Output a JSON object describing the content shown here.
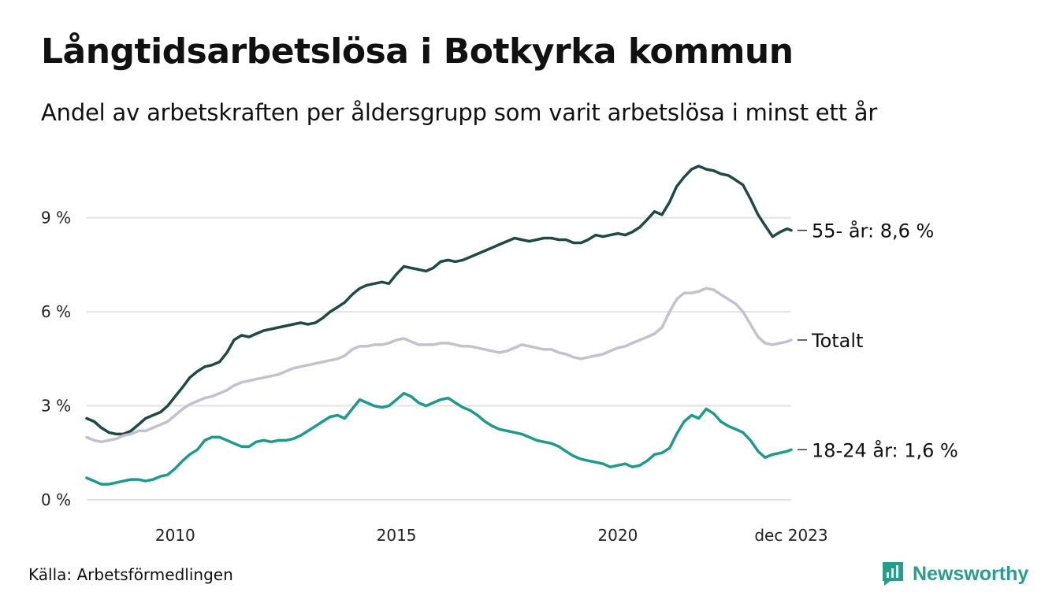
{
  "title": "Långtidsarbetslösa i Botkyrka kommun",
  "subtitle": "Andel av arbetskraften per åldersgrupp som varit arbetslösa i minst ett år",
  "source": "Källa: Arbetsförmedlingen",
  "brand": "Newsworthy",
  "colors": {
    "older": "#1f4a42",
    "total": "#c3c0cf",
    "young": "#1e9a88",
    "grid": "#e2e2e2",
    "brand": "#2a9d8a"
  },
  "chart_data": {
    "type": "line",
    "ylim": [
      0,
      10.8
    ],
    "xlim": [
      2008.0,
      2023.92
    ],
    "yticks": [
      {
        "value": 0,
        "label": "0 %"
      },
      {
        "value": 3,
        "label": "3 %"
      },
      {
        "value": 6,
        "label": "6 %"
      },
      {
        "value": 9,
        "label": "9 %"
      }
    ],
    "xticks": [
      {
        "value": 2010,
        "label": "2010"
      },
      {
        "value": 2015,
        "label": "2015"
      },
      {
        "value": 2020,
        "label": "2020"
      },
      {
        "value": 2023.92,
        "label": "dec 2023"
      }
    ],
    "grid": true,
    "series": [
      {
        "name": "55- år",
        "label": "55- år: 8,6 %",
        "colorKey": "older",
        "points": [
          [
            2008.0,
            2.6
          ],
          [
            2008.17,
            2.5
          ],
          [
            2008.33,
            2.3
          ],
          [
            2008.5,
            2.15
          ],
          [
            2008.67,
            2.1
          ],
          [
            2008.83,
            2.1
          ],
          [
            2009.0,
            2.2
          ],
          [
            2009.17,
            2.4
          ],
          [
            2009.33,
            2.6
          ],
          [
            2009.5,
            2.7
          ],
          [
            2009.67,
            2.8
          ],
          [
            2009.83,
            3.0
          ],
          [
            2010.0,
            3.3
          ],
          [
            2010.17,
            3.6
          ],
          [
            2010.33,
            3.9
          ],
          [
            2010.5,
            4.1
          ],
          [
            2010.67,
            4.25
          ],
          [
            2010.83,
            4.3
          ],
          [
            2011.0,
            4.4
          ],
          [
            2011.17,
            4.7
          ],
          [
            2011.33,
            5.1
          ],
          [
            2011.5,
            5.25
          ],
          [
            2011.67,
            5.2
          ],
          [
            2011.83,
            5.3
          ],
          [
            2012.0,
            5.4
          ],
          [
            2012.17,
            5.45
          ],
          [
            2012.33,
            5.5
          ],
          [
            2012.5,
            5.55
          ],
          [
            2012.67,
            5.6
          ],
          [
            2012.83,
            5.65
          ],
          [
            2013.0,
            5.6
          ],
          [
            2013.17,
            5.65
          ],
          [
            2013.33,
            5.8
          ],
          [
            2013.5,
            6.0
          ],
          [
            2013.67,
            6.15
          ],
          [
            2013.83,
            6.3
          ],
          [
            2014.0,
            6.55
          ],
          [
            2014.17,
            6.75
          ],
          [
            2014.33,
            6.85
          ],
          [
            2014.5,
            6.9
          ],
          [
            2014.67,
            6.95
          ],
          [
            2014.83,
            6.9
          ],
          [
            2015.0,
            7.2
          ],
          [
            2015.17,
            7.45
          ],
          [
            2015.33,
            7.4
          ],
          [
            2015.5,
            7.35
          ],
          [
            2015.67,
            7.3
          ],
          [
            2015.83,
            7.4
          ],
          [
            2016.0,
            7.6
          ],
          [
            2016.17,
            7.65
          ],
          [
            2016.33,
            7.6
          ],
          [
            2016.5,
            7.65
          ],
          [
            2016.67,
            7.75
          ],
          [
            2016.83,
            7.85
          ],
          [
            2017.0,
            7.95
          ],
          [
            2017.17,
            8.05
          ],
          [
            2017.33,
            8.15
          ],
          [
            2017.5,
            8.25
          ],
          [
            2017.67,
            8.35
          ],
          [
            2017.83,
            8.3
          ],
          [
            2018.0,
            8.25
          ],
          [
            2018.17,
            8.3
          ],
          [
            2018.33,
            8.35
          ],
          [
            2018.5,
            8.35
          ],
          [
            2018.67,
            8.3
          ],
          [
            2018.83,
            8.3
          ],
          [
            2019.0,
            8.2
          ],
          [
            2019.17,
            8.2
          ],
          [
            2019.33,
            8.3
          ],
          [
            2019.5,
            8.45
          ],
          [
            2019.67,
            8.4
          ],
          [
            2019.83,
            8.45
          ],
          [
            2020.0,
            8.5
          ],
          [
            2020.17,
            8.45
          ],
          [
            2020.33,
            8.55
          ],
          [
            2020.5,
            8.7
          ],
          [
            2020.67,
            8.95
          ],
          [
            2020.83,
            9.2
          ],
          [
            2021.0,
            9.1
          ],
          [
            2021.17,
            9.5
          ],
          [
            2021.33,
            10.0
          ],
          [
            2021.5,
            10.3
          ],
          [
            2021.67,
            10.55
          ],
          [
            2021.83,
            10.65
          ],
          [
            2022.0,
            10.55
          ],
          [
            2022.17,
            10.5
          ],
          [
            2022.33,
            10.4
          ],
          [
            2022.5,
            10.35
          ],
          [
            2022.67,
            10.2
          ],
          [
            2022.83,
            10.05
          ],
          [
            2023.0,
            9.6
          ],
          [
            2023.17,
            9.1
          ],
          [
            2023.33,
            8.75
          ],
          [
            2023.5,
            8.4
          ],
          [
            2023.67,
            8.55
          ],
          [
            2023.83,
            8.65
          ],
          [
            2023.92,
            8.6
          ]
        ]
      },
      {
        "name": "Totalt",
        "label": "Totalt",
        "colorKey": "total",
        "points": [
          [
            2008.0,
            2.0
          ],
          [
            2008.17,
            1.9
          ],
          [
            2008.33,
            1.85
          ],
          [
            2008.5,
            1.9
          ],
          [
            2008.67,
            1.95
          ],
          [
            2008.83,
            2.05
          ],
          [
            2009.0,
            2.1
          ],
          [
            2009.17,
            2.2
          ],
          [
            2009.33,
            2.2
          ],
          [
            2009.5,
            2.3
          ],
          [
            2009.67,
            2.4
          ],
          [
            2009.83,
            2.5
          ],
          [
            2010.0,
            2.7
          ],
          [
            2010.17,
            2.9
          ],
          [
            2010.33,
            3.05
          ],
          [
            2010.5,
            3.15
          ],
          [
            2010.67,
            3.25
          ],
          [
            2010.83,
            3.3
          ],
          [
            2011.0,
            3.4
          ],
          [
            2011.17,
            3.5
          ],
          [
            2011.33,
            3.65
          ],
          [
            2011.5,
            3.75
          ],
          [
            2011.67,
            3.8
          ],
          [
            2011.83,
            3.85
          ],
          [
            2012.0,
            3.9
          ],
          [
            2012.17,
            3.95
          ],
          [
            2012.33,
            4.0
          ],
          [
            2012.5,
            4.1
          ],
          [
            2012.67,
            4.2
          ],
          [
            2012.83,
            4.25
          ],
          [
            2013.0,
            4.3
          ],
          [
            2013.17,
            4.35
          ],
          [
            2013.33,
            4.4
          ],
          [
            2013.5,
            4.45
          ],
          [
            2013.67,
            4.5
          ],
          [
            2013.83,
            4.6
          ],
          [
            2014.0,
            4.8
          ],
          [
            2014.17,
            4.9
          ],
          [
            2014.33,
            4.9
          ],
          [
            2014.5,
            4.95
          ],
          [
            2014.67,
            4.95
          ],
          [
            2014.83,
            5.0
          ],
          [
            2015.0,
            5.1
          ],
          [
            2015.17,
            5.15
          ],
          [
            2015.33,
            5.05
          ],
          [
            2015.5,
            4.95
          ],
          [
            2015.67,
            4.95
          ],
          [
            2015.83,
            4.95
          ],
          [
            2016.0,
            5.0
          ],
          [
            2016.17,
            5.0
          ],
          [
            2016.33,
            4.95
          ],
          [
            2016.5,
            4.9
          ],
          [
            2016.67,
            4.9
          ],
          [
            2016.83,
            4.85
          ],
          [
            2017.0,
            4.8
          ],
          [
            2017.17,
            4.75
          ],
          [
            2017.33,
            4.7
          ],
          [
            2017.5,
            4.75
          ],
          [
            2017.67,
            4.85
          ],
          [
            2017.83,
            4.95
          ],
          [
            2018.0,
            4.9
          ],
          [
            2018.17,
            4.85
          ],
          [
            2018.33,
            4.8
          ],
          [
            2018.5,
            4.8
          ],
          [
            2018.67,
            4.7
          ],
          [
            2018.83,
            4.65
          ],
          [
            2019.0,
            4.55
          ],
          [
            2019.17,
            4.5
          ],
          [
            2019.33,
            4.55
          ],
          [
            2019.5,
            4.6
          ],
          [
            2019.67,
            4.65
          ],
          [
            2019.83,
            4.75
          ],
          [
            2020.0,
            4.85
          ],
          [
            2020.17,
            4.9
          ],
          [
            2020.33,
            5.0
          ],
          [
            2020.5,
            5.1
          ],
          [
            2020.67,
            5.2
          ],
          [
            2020.83,
            5.3
          ],
          [
            2021.0,
            5.5
          ],
          [
            2021.17,
            6.0
          ],
          [
            2021.33,
            6.4
          ],
          [
            2021.5,
            6.6
          ],
          [
            2021.67,
            6.6
          ],
          [
            2021.83,
            6.65
          ],
          [
            2022.0,
            6.75
          ],
          [
            2022.17,
            6.7
          ],
          [
            2022.33,
            6.55
          ],
          [
            2022.5,
            6.4
          ],
          [
            2022.67,
            6.25
          ],
          [
            2022.83,
            6.0
          ],
          [
            2023.0,
            5.6
          ],
          [
            2023.17,
            5.2
          ],
          [
            2023.33,
            5.0
          ],
          [
            2023.5,
            4.95
          ],
          [
            2023.67,
            5.0
          ],
          [
            2023.83,
            5.05
          ],
          [
            2023.92,
            5.1
          ]
        ]
      },
      {
        "name": "18-24 år",
        "label": "18-24 år: 1,6 %",
        "colorKey": "young",
        "points": [
          [
            2008.0,
            0.7
          ],
          [
            2008.17,
            0.6
          ],
          [
            2008.33,
            0.5
          ],
          [
            2008.5,
            0.5
          ],
          [
            2008.67,
            0.55
          ],
          [
            2008.83,
            0.6
          ],
          [
            2009.0,
            0.65
          ],
          [
            2009.17,
            0.65
          ],
          [
            2009.33,
            0.6
          ],
          [
            2009.5,
            0.65
          ],
          [
            2009.67,
            0.75
          ],
          [
            2009.83,
            0.8
          ],
          [
            2010.0,
            1.0
          ],
          [
            2010.17,
            1.25
          ],
          [
            2010.33,
            1.45
          ],
          [
            2010.5,
            1.6
          ],
          [
            2010.67,
            1.9
          ],
          [
            2010.83,
            2.0
          ],
          [
            2011.0,
            2.0
          ],
          [
            2011.17,
            1.9
          ],
          [
            2011.33,
            1.8
          ],
          [
            2011.5,
            1.7
          ],
          [
            2011.67,
            1.7
          ],
          [
            2011.83,
            1.85
          ],
          [
            2012.0,
            1.9
          ],
          [
            2012.17,
            1.85
          ],
          [
            2012.33,
            1.9
          ],
          [
            2012.5,
            1.9
          ],
          [
            2012.67,
            1.95
          ],
          [
            2012.83,
            2.05
          ],
          [
            2013.0,
            2.2
          ],
          [
            2013.17,
            2.35
          ],
          [
            2013.33,
            2.5
          ],
          [
            2013.5,
            2.65
          ],
          [
            2013.67,
            2.7
          ],
          [
            2013.83,
            2.6
          ],
          [
            2014.0,
            2.9
          ],
          [
            2014.17,
            3.2
          ],
          [
            2014.33,
            3.1
          ],
          [
            2014.5,
            3.0
          ],
          [
            2014.67,
            2.95
          ],
          [
            2014.83,
            3.0
          ],
          [
            2015.0,
            3.2
          ],
          [
            2015.17,
            3.4
          ],
          [
            2015.33,
            3.3
          ],
          [
            2015.5,
            3.1
          ],
          [
            2015.67,
            3.0
          ],
          [
            2015.83,
            3.1
          ],
          [
            2016.0,
            3.2
          ],
          [
            2016.17,
            3.25
          ],
          [
            2016.33,
            3.1
          ],
          [
            2016.5,
            2.95
          ],
          [
            2016.67,
            2.85
          ],
          [
            2016.83,
            2.7
          ],
          [
            2017.0,
            2.5
          ],
          [
            2017.17,
            2.35
          ],
          [
            2017.33,
            2.25
          ],
          [
            2017.5,
            2.2
          ],
          [
            2017.67,
            2.15
          ],
          [
            2017.83,
            2.1
          ],
          [
            2018.0,
            2.0
          ],
          [
            2018.17,
            1.9
          ],
          [
            2018.33,
            1.85
          ],
          [
            2018.5,
            1.8
          ],
          [
            2018.67,
            1.7
          ],
          [
            2018.83,
            1.55
          ],
          [
            2019.0,
            1.4
          ],
          [
            2019.17,
            1.3
          ],
          [
            2019.33,
            1.25
          ],
          [
            2019.5,
            1.2
          ],
          [
            2019.67,
            1.15
          ],
          [
            2019.83,
            1.05
          ],
          [
            2020.0,
            1.1
          ],
          [
            2020.17,
            1.15
          ],
          [
            2020.33,
            1.05
          ],
          [
            2020.5,
            1.1
          ],
          [
            2020.67,
            1.25
          ],
          [
            2020.83,
            1.45
          ],
          [
            2021.0,
            1.5
          ],
          [
            2021.17,
            1.65
          ],
          [
            2021.33,
            2.1
          ],
          [
            2021.5,
            2.5
          ],
          [
            2021.67,
            2.7
          ],
          [
            2021.83,
            2.6
          ],
          [
            2022.0,
            2.9
          ],
          [
            2022.17,
            2.75
          ],
          [
            2022.33,
            2.5
          ],
          [
            2022.5,
            2.35
          ],
          [
            2022.67,
            2.25
          ],
          [
            2022.83,
            2.15
          ],
          [
            2023.0,
            1.9
          ],
          [
            2023.17,
            1.55
          ],
          [
            2023.33,
            1.35
          ],
          [
            2023.5,
            1.45
          ],
          [
            2023.67,
            1.5
          ],
          [
            2023.83,
            1.55
          ],
          [
            2023.92,
            1.6
          ]
        ]
      }
    ]
  }
}
